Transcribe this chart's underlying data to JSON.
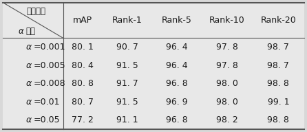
{
  "col_labels": [
    "mAP",
    "Rank-1",
    "Rank-5",
    "Rank-10",
    "Rank-20"
  ],
  "row_labels": [
    "α=0.001",
    "α=0.005",
    "α=0.008",
    "α=0.01",
    "α=0.05"
  ],
  "row_labels_alpha": [
    "α",
    "α",
    "α",
    "α",
    "α"
  ],
  "row_labels_rest": [
    "=0.001",
    "=0.005",
    "=0.008",
    "=0.01",
    "=0.05"
  ],
  "data": [
    [
      "80. 1",
      "90. 7",
      "96. 4",
      "97. 8",
      "98. 7"
    ],
    [
      "80. 4",
      "91. 5",
      "96. 4",
      "97. 8",
      "98. 7"
    ],
    [
      "80. 8",
      "91. 7",
      "96. 8",
      "98. 0",
      "98. 8"
    ],
    [
      "80. 7",
      "91. 5",
      "96. 9",
      "98. 0",
      "99. 1"
    ],
    [
      "77. 2",
      "91. 1",
      "96. 8",
      "98. 2",
      "98. 8"
    ]
  ],
  "header_cn_top": "评价指标",
  "header_cn_bot": "取値",
  "header_alpha": "α",
  "bg_color": "#d8d8d8",
  "cell_bg": "#e8e8e8",
  "text_color": "#1a1a1a",
  "line_color": "#555555",
  "font_size": 9.0,
  "figwidth": 4.46,
  "figheight": 1.92,
  "dpi": 100
}
